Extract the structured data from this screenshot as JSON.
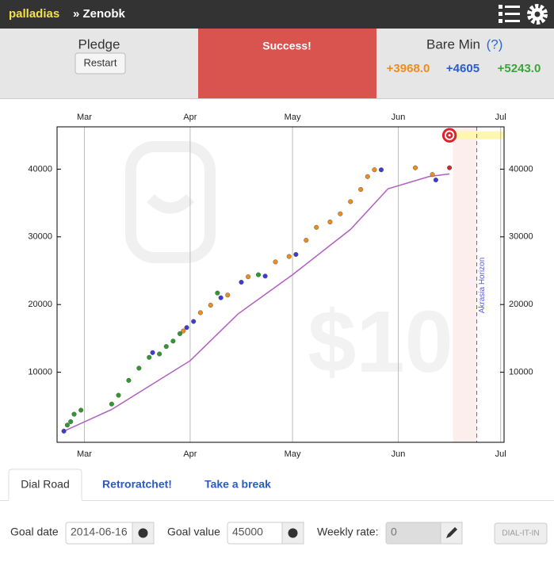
{
  "header": {
    "user": "palladias",
    "goal": "» Zenobk"
  },
  "status": {
    "pledge_label": "Pledge",
    "restart": "Restart",
    "message": "Success!",
    "bare_min_label": "Bare Min",
    "bare_min_help": "(?)",
    "bare_min": [
      "+3968.0",
      "+4605",
      "+5243.0"
    ]
  },
  "chart_data": {
    "type": "scatter",
    "xlim": [
      52,
      183
    ],
    "xticks": [
      {
        "value": 60,
        "label": "Mar"
      },
      {
        "value": 91,
        "label": "Apr"
      },
      {
        "value": 121,
        "label": "May"
      },
      {
        "value": 152,
        "label": "Jun"
      },
      {
        "value": 182,
        "label": "Jul"
      }
    ],
    "ylim": [
      -350,
      46250
    ],
    "yticks": [
      10000,
      20000,
      30000,
      40000
    ],
    "grid": "x",
    "watermark": "$10",
    "series": [
      {
        "color": "#b05fc0",
        "mode": "line",
        "x": [
          54,
          68,
          91,
          105,
          121,
          138,
          149,
          161,
          167
        ],
        "values": [
          1300,
          4500,
          11700,
          18600,
          24400,
          31100,
          37100,
          38900,
          39300
        ]
      },
      {
        "color": "#2e9a2e",
        "mode": "points",
        "x": [
          55,
          56,
          57,
          59,
          68,
          70,
          73,
          76,
          79,
          82,
          84,
          86,
          88,
          99,
          111
        ],
        "values": [
          2200,
          2700,
          3800,
          4400,
          5300,
          6600,
          8800,
          10600,
          12200,
          12700,
          13800,
          14600,
          15700,
          21700,
          24400
        ]
      },
      {
        "color": "#3b3bd6",
        "mode": "points",
        "x": [
          54,
          80,
          90,
          92,
          100,
          106,
          113,
          122,
          147,
          163
        ],
        "values": [
          1300,
          12900,
          16600,
          17500,
          21000,
          23300,
          24200,
          27400,
          39900,
          38400
        ]
      },
      {
        "color": "#f08c1a",
        "mode": "points",
        "x": [
          89,
          94,
          97,
          102,
          108,
          116,
          120,
          125,
          128,
          132,
          135,
          138,
          141,
          143,
          145,
          157,
          162
        ],
        "values": [
          16100,
          18800,
          19900,
          21400,
          24100,
          26300,
          27100,
          29500,
          31400,
          32200,
          33400,
          35200,
          37000,
          38900,
          39900,
          40200,
          39200
        ]
      },
      {
        "color": "#e0202a",
        "mode": "points",
        "x": [
          167
        ],
        "values": [
          40200
        ]
      }
    ],
    "horizon": {
      "x": 175,
      "label": "Akrasia Horizon"
    },
    "goal": {
      "x": 167,
      "value": 45000
    }
  },
  "tabs": [
    "Dial Road",
    "Retroratchet!",
    "Take a break"
  ],
  "form": {
    "goal_date_label": "Goal date",
    "goal_date": "2014-06-16",
    "goal_value_label": "Goal value",
    "goal_value": "45000",
    "rate_label": "Weekly rate:",
    "rate": "0",
    "submit": "DIAL-IT-IN"
  }
}
